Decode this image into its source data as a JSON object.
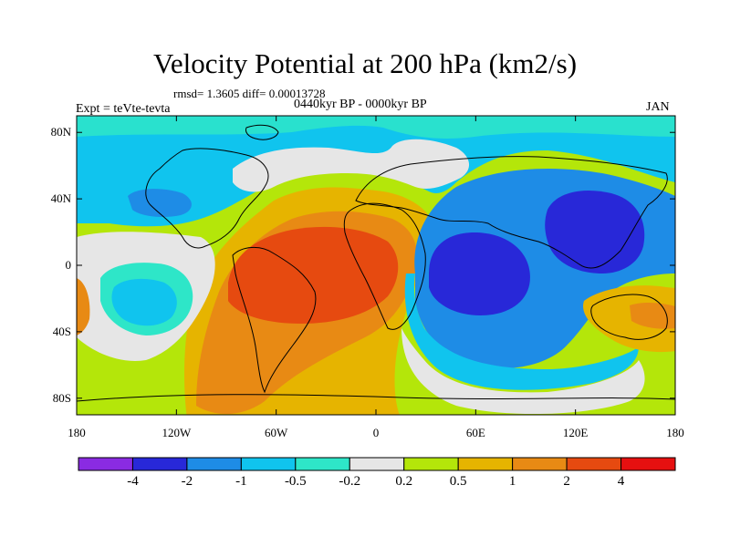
{
  "title": "Velocity Potential at 200 hPa (km2/s)",
  "stats": "rmsd= 1.3605 diff= 0.00013728",
  "period": "0440kyr BP - 0000kyr BP",
  "experiment": "Expt = teVte-tevta",
  "month": "JAN",
  "map": {
    "lat_labels": [
      "80N",
      "40N",
      "0",
      "40S",
      "80S"
    ],
    "lat_values": [
      80,
      40,
      0,
      -40,
      -80
    ],
    "lon_labels": [
      "180",
      "120W",
      "60W",
      "0",
      "60E",
      "120E",
      "180"
    ],
    "lon_values": [
      -180,
      -120,
      -60,
      0,
      60,
      120,
      180
    ]
  },
  "colorbar": {
    "colors": [
      "#8a2be2",
      "#2828d8",
      "#1e8ce6",
      "#10c4ee",
      "#2ee6c8",
      "#e6e6e6",
      "#b4e60a",
      "#e6b400",
      "#e88a14",
      "#e64a10",
      "#e61010"
    ],
    "labels": [
      "-4",
      "-2",
      "-1",
      "-0.5",
      "-0.2",
      "0.2",
      "0.5",
      "1",
      "2",
      "4"
    ]
  }
}
